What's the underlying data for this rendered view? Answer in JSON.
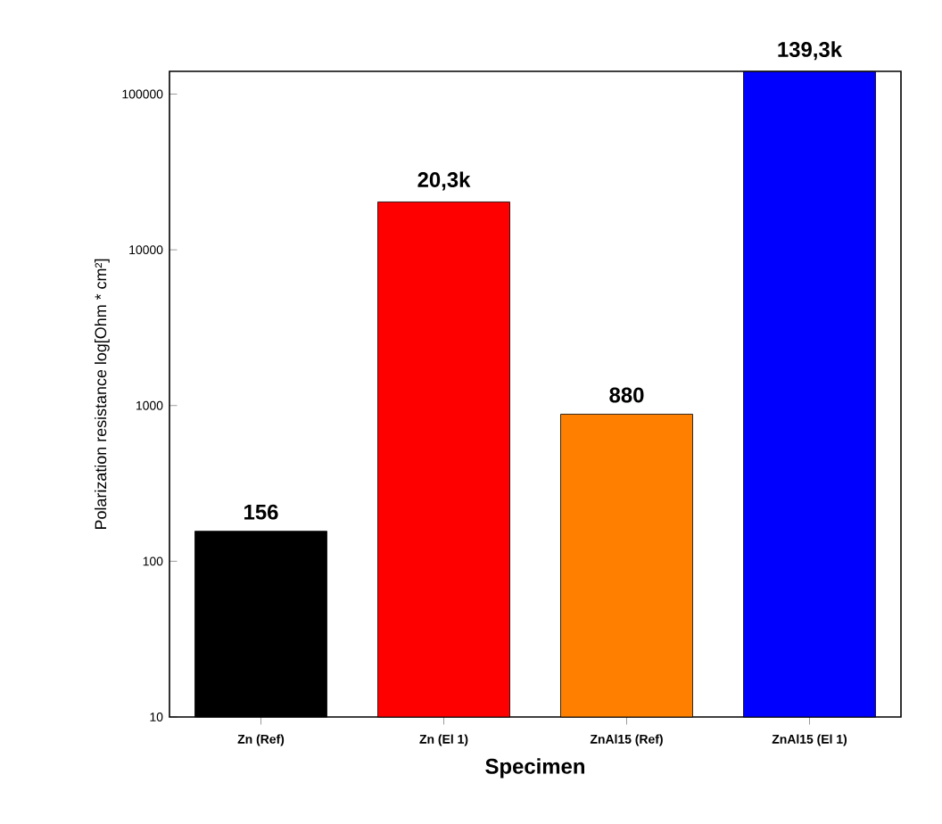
{
  "chart_data": {
    "type": "bar",
    "xlabel": "Specimen",
    "ylabel": "Polarization resistance log[Ohm * cm²]",
    "categories": [
      "Zn (Ref)",
      "Zn (El 1)",
      "ZnAl15 (Ref)",
      "ZnAl15 (El 1)"
    ],
    "values": [
      156,
      20300,
      880,
      139300
    ],
    "value_labels": [
      "156",
      "20,3k",
      "880",
      "139,3k"
    ],
    "colors": [
      "#000000",
      "#ff0000",
      "#ff8000",
      "#0000ff"
    ],
    "log": "y",
    "ylim": [
      10,
      140000
    ],
    "yticks": [
      10,
      100,
      1000,
      10000,
      100000
    ],
    "grid": false
  }
}
